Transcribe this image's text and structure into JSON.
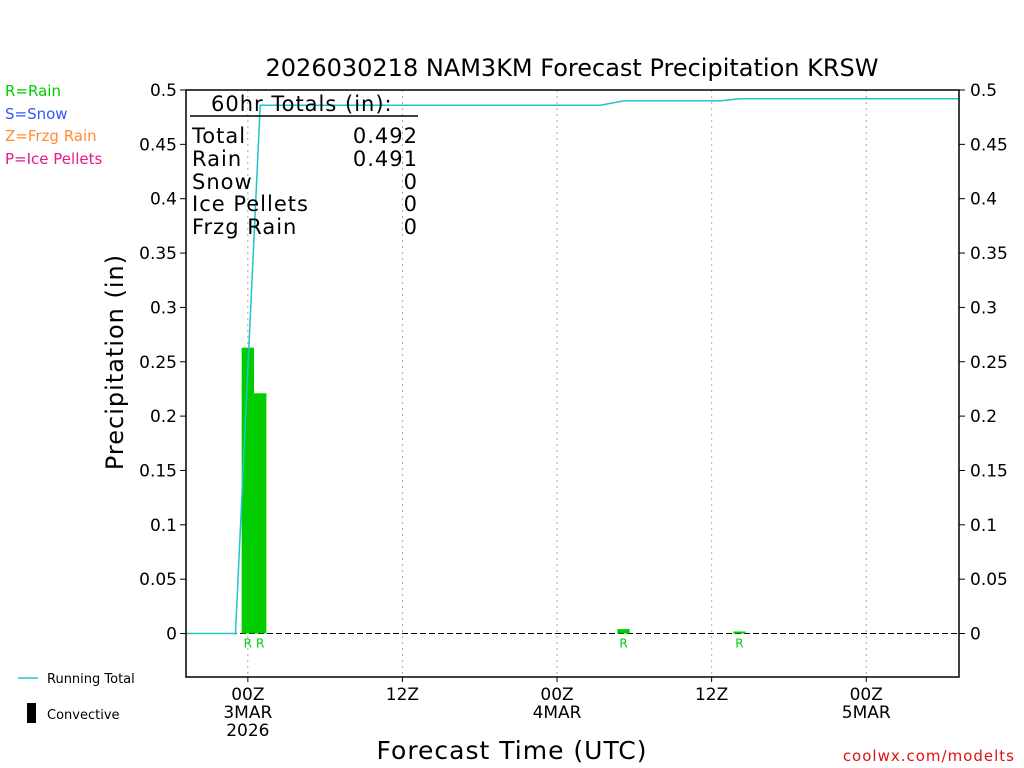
{
  "chart_data": {
    "type": "bar",
    "title": "2026030218 NAM3KM Forecast Precipitation KRSW",
    "xlabel": "Forecast Time (UTC)",
    "ylabel": "Precipitation (in)",
    "ylim": [
      -0.04,
      0.5
    ],
    "xlim": [
      -4,
      46
    ],
    "y_ticks": [
      "0",
      "0.05",
      "0.1",
      "0.15",
      "0.2",
      "0.25",
      "0.3",
      "0.35",
      "0.4",
      "0.45",
      "0.5"
    ],
    "x_ticks": [
      {
        "hour": 0,
        "lines": [
          "00Z",
          "3MAR",
          "2026"
        ]
      },
      {
        "hour": 10,
        "lines": [
          "12Z"
        ]
      },
      {
        "hour": 20,
        "lines": [
          "00Z",
          "4MAR"
        ]
      },
      {
        "hour": 30,
        "lines": [
          "12Z"
        ]
      },
      {
        "hour": 40,
        "lines": [
          "00Z",
          "5MAR"
        ]
      }
    ],
    "bars": [
      {
        "hour": 0,
        "value": 0.263,
        "type": "R"
      },
      {
        "hour": 0.8,
        "value": 0.221,
        "type": "R"
      },
      {
        "hour": 24.3,
        "value": 0.004,
        "type": "R"
      },
      {
        "hour": 31.8,
        "value": 0.001,
        "type": "R"
      }
    ],
    "running_total": {
      "name": "Running Total",
      "x": [
        -4,
        -0.8,
        0.8,
        22.8,
        24.3,
        30.5,
        31.8,
        46
      ],
      "y": [
        0,
        0,
        0.486,
        0.486,
        0.49,
        0.49,
        0.492,
        0.492
      ]
    },
    "totals_box": {
      "heading": "60hr Totals (in):",
      "rows": [
        {
          "label": "Total",
          "value": "0.492"
        },
        {
          "label": "Rain",
          "value": "0.491"
        },
        {
          "label": "Snow",
          "value": "0"
        },
        {
          "label": "Ice Pellets",
          "value": "0"
        },
        {
          "label": "Frzg Rain",
          "value": "0"
        }
      ]
    },
    "type_legend": [
      {
        "text": "R=Rain",
        "color": "#00cc00"
      },
      {
        "text": "S=Snow",
        "color": "#3355ff"
      },
      {
        "text": "Z=Frzg Rain",
        "color": "#ff8c33"
      },
      {
        "text": "P=Ice Pellets",
        "color": "#e6198c"
      }
    ],
    "legend": [
      {
        "name": "Running Total",
        "color": "#1fc4cf"
      },
      {
        "name": "Convective",
        "color": "#000000"
      }
    ],
    "colors": {
      "rain": "#00cc00",
      "running_total": "#1fc4cf"
    },
    "credit": "coolwx.com/modelts"
  }
}
